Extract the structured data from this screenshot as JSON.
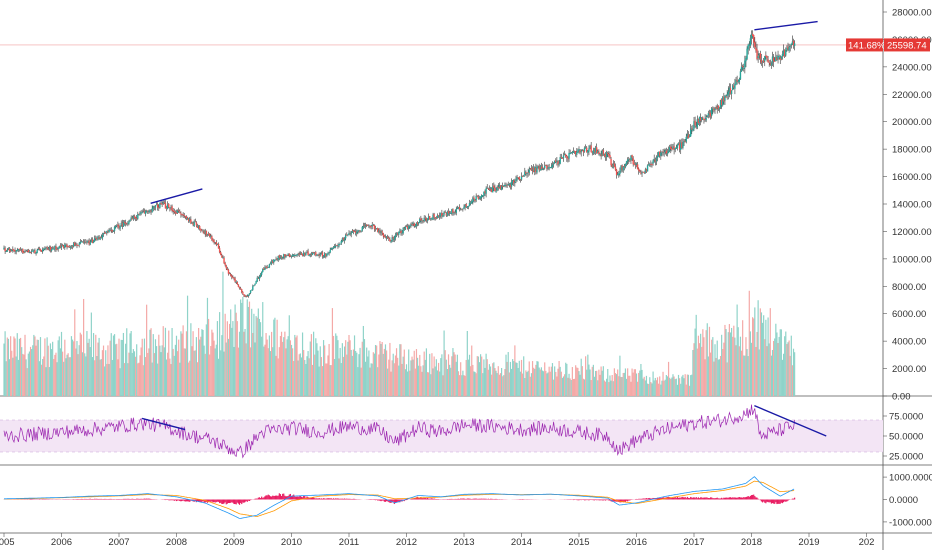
{
  "chart_data": {
    "type": "candlestick",
    "colors": {
      "up": "#26a69a",
      "down": "#ef5350",
      "trendline": "#1a1aa6",
      "rsi_line": "#9c27b0",
      "rsi_band": "#f3e5f5",
      "macd_line": "#2196f3",
      "signal_line": "#ff9800",
      "histogram": "#e91e63",
      "badge": "#e53935"
    },
    "price_axis": {
      "ticks": [
        "28000.00",
        "26000.00",
        "24000.00",
        "22000.00",
        "20000.00",
        "18000.00",
        "16000.00",
        "14000.00",
        "12000.00",
        "10000.00",
        "8000.00",
        "6000.00",
        "4000.00",
        "2000.00",
        "0.00"
      ],
      "ylim": [
        0,
        29000
      ]
    },
    "x_axis": {
      "ticks": [
        "2005",
        "2006",
        "2007",
        "2008",
        "2009",
        "2010",
        "2011",
        "2012",
        "2013",
        "2014",
        "2015",
        "2016",
        "2017",
        "2018",
        "2019",
        "202"
      ],
      "xlim": [
        2005.0,
        2020.0
      ]
    },
    "last_price": {
      "value": 25598.74,
      "label": "25598.74",
      "change_label": "141.68%"
    },
    "price_series": {
      "name": "",
      "x": [
        2005.0,
        2005.5,
        2006.0,
        2006.5,
        2007.0,
        2007.4,
        2007.75,
        2008.1,
        2008.4,
        2008.7,
        2008.9,
        2009.05,
        2009.2,
        2009.5,
        2009.8,
        2010.3,
        2010.6,
        2011.0,
        2011.4,
        2011.7,
        2011.9,
        2012.3,
        2012.7,
        2013.0,
        2013.4,
        2013.8,
        2014.1,
        2014.5,
        2014.8,
        2015.2,
        2015.5,
        2015.65,
        2015.9,
        2016.1,
        2016.4,
        2016.8,
        2017.0,
        2017.4,
        2017.8,
        2018.0,
        2018.1,
        2018.3,
        2018.5,
        2018.65,
        2018.75
      ],
      "y": [
        10700,
        10500,
        10900,
        11200,
        12400,
        13300,
        14000,
        13200,
        12300,
        11100,
        9000,
        8200,
        7100,
        9200,
        10200,
        10400,
        10300,
        11800,
        12500,
        11300,
        12000,
        12900,
        13300,
        13800,
        15000,
        15400,
        16400,
        16800,
        17500,
        18000,
        17600,
        16200,
        17400,
        16100,
        17700,
        18300,
        19800,
        21000,
        23300,
        26200,
        24800,
        24300,
        24700,
        25400,
        25600
      ]
    },
    "trendlines": [
      {
        "name": "price-2007",
        "x": [
          2007.55,
          2008.45
        ],
        "y": [
          14050,
          15100
        ]
      },
      {
        "name": "price-2018",
        "x": [
          2018.05,
          2019.15
        ],
        "y": [
          26700,
          27300
        ]
      }
    ],
    "volume_series": {
      "x": [
        2005.0,
        2005.5,
        2006.0,
        2006.5,
        2007.0,
        2007.5,
        2008.0,
        2008.5,
        2008.9,
        2009.2,
        2009.5,
        2010.0,
        2010.5,
        2011.0,
        2011.5,
        2012.0,
        2012.5,
        2013.0,
        2013.5,
        2014.0,
        2014.5,
        2015.0,
        2015.5,
        2016.0,
        2016.5,
        2016.95,
        2017.0,
        2017.5,
        2018.0,
        2018.1,
        2018.4,
        2018.75
      ],
      "y": [
        2600,
        2500,
        2700,
        2600,
        2500,
        2800,
        2900,
        3000,
        3600,
        4200,
        3500,
        2900,
        2600,
        2500,
        2300,
        2100,
        1900,
        1800,
        1700,
        1600,
        1500,
        1300,
        1200,
        1100,
        1000,
        900,
        2900,
        3000,
        3300,
        4200,
        3300,
        2700
      ],
      "ylim": [
        0,
        7500
      ]
    },
    "rsi": {
      "axis_ticks": [
        "75.0000",
        "50.0000",
        "25.0000"
      ],
      "ylim": [
        15,
        95
      ],
      "band": [
        30,
        70
      ],
      "x": [
        2005.0,
        2005.5,
        2006.0,
        2006.5,
        2007.0,
        2007.4,
        2007.8,
        2008.2,
        2008.6,
        2008.9,
        2009.1,
        2009.5,
        2010.0,
        2010.5,
        2011.0,
        2011.5,
        2011.8,
        2012.2,
        2012.6,
        2013.0,
        2013.5,
        2014.0,
        2014.5,
        2015.0,
        2015.5,
        2015.7,
        2016.0,
        2016.5,
        2017.0,
        2017.5,
        2017.9,
        2018.05,
        2018.15,
        2018.4,
        2018.7
      ],
      "y": [
        50,
        52,
        55,
        58,
        62,
        66,
        62,
        52,
        45,
        35,
        28,
        55,
        60,
        55,
        62,
        58,
        42,
        60,
        55,
        64,
        62,
        58,
        60,
        55,
        50,
        32,
        45,
        58,
        66,
        70,
        78,
        86,
        50,
        55,
        62
      ]
    },
    "rsi_trendlines": [
      {
        "name": "rsi-2007",
        "x": [
          2007.4,
          2008.15
        ],
        "y": [
          72,
          58
        ]
      },
      {
        "name": "rsi-2018",
        "x": [
          2018.05,
          2019.3
        ],
        "y": [
          88,
          50
        ]
      }
    ],
    "macd": {
      "axis_ticks": [
        "1000.0000",
        "0.0000",
        "-1000.0000"
      ],
      "ylim": [
        -1450,
        1450
      ],
      "x": [
        2005.0,
        2005.5,
        2006.0,
        2006.5,
        2007.0,
        2007.5,
        2008.0,
        2008.5,
        2008.9,
        2009.1,
        2009.4,
        2009.7,
        2010.0,
        2010.5,
        2011.0,
        2011.5,
        2011.8,
        2012.2,
        2012.6,
        2013.0,
        2013.5,
        2014.0,
        2014.5,
        2015.0,
        2015.5,
        2015.7,
        2016.0,
        2016.5,
        2017.0,
        2017.5,
        2017.9,
        2018.05,
        2018.2,
        2018.5,
        2018.75
      ],
      "macd_y": [
        30,
        60,
        90,
        150,
        180,
        260,
        120,
        -160,
        -600,
        -850,
        -700,
        -250,
        150,
        200,
        260,
        160,
        -150,
        180,
        120,
        230,
        260,
        200,
        240,
        160,
        60,
        -250,
        -150,
        140,
        360,
        470,
        720,
        1020,
        620,
        150,
        480
      ],
      "signal_y": [
        20,
        40,
        80,
        120,
        160,
        220,
        180,
        -40,
        -400,
        -640,
        -760,
        -500,
        -60,
        150,
        220,
        200,
        30,
        70,
        110,
        190,
        230,
        220,
        230,
        190,
        100,
        -80,
        -180,
        40,
        260,
        400,
        600,
        820,
        760,
        350,
        400
      ],
      "histogram_y": [
        10,
        20,
        10,
        30,
        20,
        40,
        -60,
        -120,
        -200,
        -210,
        60,
        250,
        210,
        50,
        40,
        -40,
        -180,
        110,
        10,
        40,
        30,
        -20,
        10,
        -30,
        -40,
        -170,
        30,
        100,
        100,
        70,
        120,
        200,
        -140,
        -200,
        80
      ]
    }
  }
}
